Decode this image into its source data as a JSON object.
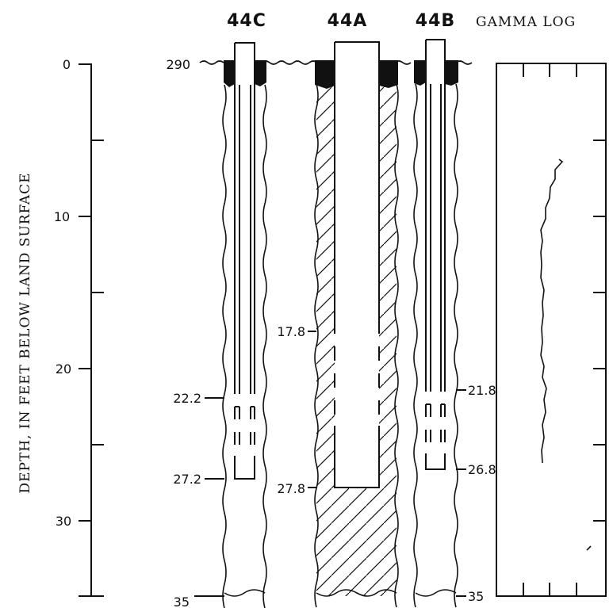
{
  "figure": {
    "axis_title": "DEPTH, IN FEET BELOW LAND SURFACE",
    "depth_ticks": [
      "0",
      "10",
      "20",
      "30"
    ],
    "bottom_depth_label": "35",
    "surface_label": "290",
    "wells": [
      {
        "name": "44C",
        "screen_top": "22.2",
        "screen_bottom": "27.2"
      },
      {
        "name": "44A",
        "screen_top": "17.8",
        "screen_bottom": "27.8"
      },
      {
        "name": "44B",
        "screen_top": "21.8",
        "screen_bottom": "26.8",
        "bottom_label": "35"
      }
    ],
    "gamma_log_title": "GAMMA LOG"
  }
}
